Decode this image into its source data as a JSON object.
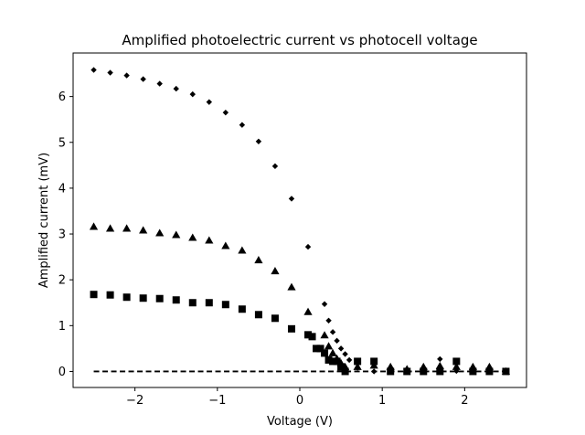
{
  "chart_data": {
    "type": "scatter",
    "title": "Amplified photoelectric current vs photocell voltage",
    "xlabel": "Voltage (V)",
    "ylabel": "Amplified current (mV)",
    "xlim": [
      -2.75,
      2.75
    ],
    "ylim": [
      -0.35,
      6.95
    ],
    "xticks": [
      -2,
      -1,
      0,
      1,
      2
    ],
    "xtick_labels": [
      "−2",
      "−1",
      "0",
      "1",
      "2"
    ],
    "yticks": [
      0,
      1,
      2,
      3,
      4,
      5,
      6
    ],
    "ytick_labels": [
      "0",
      "1",
      "2",
      "3",
      "4",
      "5",
      "6"
    ],
    "grid": false,
    "legend": false,
    "series": [
      {
        "marker": "diamond",
        "points": [
          [
            -2.5,
            6.58
          ],
          [
            -2.3,
            6.52
          ],
          [
            -2.1,
            6.46
          ],
          [
            -1.9,
            6.38
          ],
          [
            -1.7,
            6.28
          ],
          [
            -1.5,
            6.17
          ],
          [
            -1.3,
            6.05
          ],
          [
            -1.1,
            5.88
          ],
          [
            -0.9,
            5.65
          ],
          [
            -0.7,
            5.38
          ],
          [
            -0.5,
            5.02
          ],
          [
            -0.3,
            4.48
          ],
          [
            -0.1,
            3.77
          ],
          [
            0.1,
            2.72
          ],
          [
            0.3,
            1.47
          ],
          [
            0.35,
            1.11
          ],
          [
            0.4,
            0.86
          ],
          [
            0.45,
            0.67
          ],
          [
            0.5,
            0.5
          ],
          [
            0.55,
            0.38
          ],
          [
            0.6,
            0.25
          ],
          [
            0.7,
            0.08
          ],
          [
            0.9,
            0.0
          ],
          [
            1.1,
            0.02
          ],
          [
            1.3,
            0.0
          ],
          [
            1.5,
            0.02
          ],
          [
            1.7,
            0.27
          ],
          [
            1.9,
            0.01
          ],
          [
            2.1,
            0.0
          ],
          [
            2.3,
            0.01
          ],
          [
            2.5,
            0.0
          ]
        ]
      },
      {
        "marker": "triangle",
        "points": [
          [
            -2.5,
            3.16
          ],
          [
            -2.3,
            3.12
          ],
          [
            -2.1,
            3.12
          ],
          [
            -1.9,
            3.08
          ],
          [
            -1.7,
            3.02
          ],
          [
            -1.5,
            2.98
          ],
          [
            -1.3,
            2.92
          ],
          [
            -1.1,
            2.86
          ],
          [
            -0.9,
            2.74
          ],
          [
            -0.7,
            2.64
          ],
          [
            -0.5,
            2.43
          ],
          [
            -0.3,
            2.19
          ],
          [
            -0.1,
            1.84
          ],
          [
            0.1,
            1.3
          ],
          [
            0.3,
            0.79
          ],
          [
            0.35,
            0.55
          ],
          [
            0.4,
            0.4
          ],
          [
            0.45,
            0.28
          ],
          [
            0.5,
            0.18
          ],
          [
            0.55,
            0.1
          ],
          [
            0.7,
            0.1
          ],
          [
            0.9,
            0.13
          ],
          [
            1.1,
            0.1
          ],
          [
            1.3,
            0.05
          ],
          [
            1.5,
            0.1
          ],
          [
            1.7,
            0.12
          ],
          [
            1.9,
            0.1
          ],
          [
            2.1,
            0.1
          ],
          [
            2.3,
            0.1
          ],
          [
            2.5,
            0.0
          ]
        ]
      },
      {
        "marker": "square",
        "points": [
          [
            -2.5,
            1.68
          ],
          [
            -2.3,
            1.67
          ],
          [
            -2.1,
            1.62
          ],
          [
            -1.9,
            1.6
          ],
          [
            -1.7,
            1.59
          ],
          [
            -1.5,
            1.56
          ],
          [
            -1.3,
            1.5
          ],
          [
            -1.1,
            1.5
          ],
          [
            -0.9,
            1.46
          ],
          [
            -0.7,
            1.36
          ],
          [
            -0.5,
            1.24
          ],
          [
            -0.3,
            1.16
          ],
          [
            -0.1,
            0.93
          ],
          [
            0.1,
            0.8
          ],
          [
            0.15,
            0.76
          ],
          [
            0.2,
            0.5
          ],
          [
            0.25,
            0.5
          ],
          [
            0.3,
            0.4
          ],
          [
            0.35,
            0.25
          ],
          [
            0.4,
            0.22
          ],
          [
            0.45,
            0.22
          ],
          [
            0.5,
            0.1
          ],
          [
            0.55,
            0.0
          ],
          [
            0.7,
            0.22
          ],
          [
            0.9,
            0.22
          ],
          [
            1.1,
            0.0
          ],
          [
            1.3,
            0.0
          ],
          [
            1.5,
            0.0
          ],
          [
            1.7,
            0.0
          ],
          [
            1.9,
            0.22
          ],
          [
            2.1,
            0.0
          ],
          [
            2.3,
            0.0
          ],
          [
            2.5,
            0.0
          ]
        ]
      }
    ],
    "reference_line": {
      "style": "dashed",
      "x": [
        -2.5,
        2.5
      ],
      "y": [
        0,
        0
      ]
    }
  }
}
